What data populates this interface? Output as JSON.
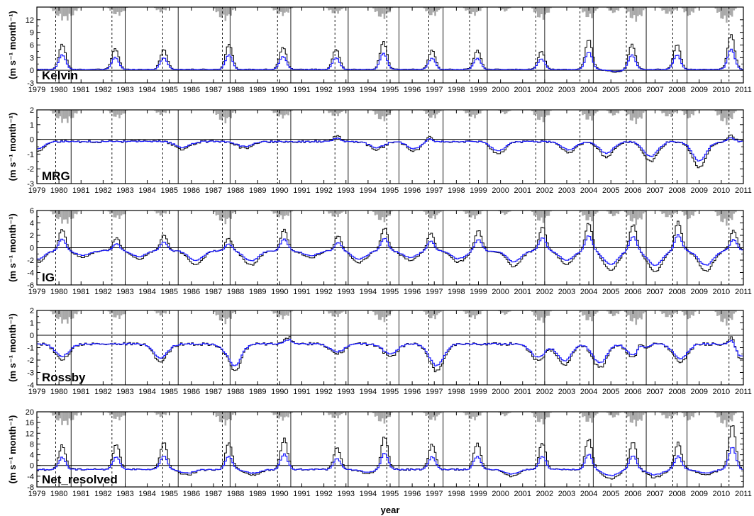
{
  "figure": {
    "xlabel": "year",
    "ylabel_unit": "(m s⁻¹ month⁻¹)"
  },
  "colors": {
    "black_series": "#000000",
    "blue_series": "#1a1aff",
    "gray_bars": "#a9a9a9",
    "axis": "#000000"
  },
  "chart_data": [
    {
      "type": "line",
      "title": "Kelvin",
      "xlabel": "",
      "ylabel": "(m s⁻¹ month⁻¹)",
      "xlim": [
        1979,
        2011
      ],
      "ylim": [
        -3,
        15
      ],
      "yticks": [
        -3,
        0,
        3,
        6,
        9,
        12
      ],
      "xticks": [
        "1979",
        "1980",
        "1981",
        "1982",
        "1983",
        "1984",
        "1985",
        "1986",
        "1987",
        "1988",
        "1989",
        "1990",
        "1991",
        "1992",
        "1993",
        "1994",
        "1995",
        "1996",
        "1997",
        "1998",
        "1999",
        "2000",
        "2001",
        "2002",
        "2003",
        "2004",
        "2005",
        "2006",
        "2007",
        "2008",
        "2009",
        "2010",
        "2011"
      ],
      "grid": false,
      "legend": "none",
      "baseline": 0,
      "base": 0.2,
      "peaks": [
        [
          1980.15,
          6.2
        ],
        [
          1982.55,
          5.2
        ],
        [
          1984.75,
          5.0
        ],
        [
          1987.7,
          6.3
        ],
        [
          1990.15,
          5.6
        ],
        [
          1992.55,
          5.0
        ],
        [
          1994.7,
          6.8
        ],
        [
          1996.9,
          4.8
        ],
        [
          1998.95,
          4.8
        ],
        [
          2001.85,
          4.6
        ],
        [
          2004.0,
          7.3
        ],
        [
          2005.95,
          6.2
        ],
        [
          2008.0,
          6.2
        ],
        [
          2010.45,
          8.6
        ]
      ],
      "blue_ratio": 0.58,
      "dips": [
        [
          2005.2,
          -0.4
        ]
      ],
      "noise": 0.12
    },
    {
      "type": "line",
      "title": "MRG",
      "xlabel": "",
      "ylabel": "(m s⁻¹ month⁻¹)",
      "xlim": [
        1979,
        2011
      ],
      "ylim": [
        -3,
        2
      ],
      "yticks": [
        -3,
        -2,
        -1,
        0,
        1,
        2
      ],
      "xticks": [
        "1979",
        "1980",
        "1981",
        "1982",
        "1983",
        "1984",
        "1985",
        "1986",
        "1987",
        "1988",
        "1989",
        "1990",
        "1991",
        "1992",
        "1993",
        "1994",
        "1995",
        "1996",
        "1997",
        "1998",
        "1999",
        "2000",
        "2001",
        "2002",
        "2003",
        "2004",
        "2005",
        "2006",
        "2007",
        "2008",
        "2009",
        "2010",
        "2011"
      ],
      "grid": false,
      "legend": "none",
      "baseline": 0,
      "base": -0.15,
      "peaks": [
        [
          1992.6,
          0.25
        ],
        [
          1996.75,
          0.25
        ],
        [
          2010.45,
          0.25
        ]
      ],
      "dips": [
        [
          1979.0,
          -0.8
        ],
        [
          1985.6,
          -0.7
        ],
        [
          1988.4,
          -0.6
        ],
        [
          1994.4,
          -0.7
        ],
        [
          1996.1,
          -0.8
        ],
        [
          1999.9,
          -1.0
        ],
        [
          2003.1,
          -0.9
        ],
        [
          2004.8,
          -1.2
        ],
        [
          2006.8,
          -1.5
        ],
        [
          2009.0,
          -1.9
        ]
      ],
      "blue_ratio": 0.6,
      "noise": 0.08
    },
    {
      "type": "line",
      "title": "IG",
      "xlabel": "",
      "ylabel": "(m s⁻¹ month⁻¹)",
      "xlim": [
        1979,
        2011
      ],
      "ylim": [
        -6,
        6
      ],
      "yticks": [
        -6,
        -4,
        -2,
        0,
        2,
        4,
        6
      ],
      "xticks": [
        "1979",
        "1980",
        "1981",
        "1982",
        "1983",
        "1984",
        "1985",
        "1986",
        "1987",
        "1988",
        "1989",
        "1990",
        "1991",
        "1992",
        "1993",
        "1994",
        "1995",
        "1996",
        "1997",
        "1998",
        "1999",
        "2000",
        "2001",
        "2002",
        "2003",
        "2004",
        "2005",
        "2006",
        "2007",
        "2008",
        "2009",
        "2010",
        "2011"
      ],
      "grid": false,
      "legend": "none",
      "baseline": 0,
      "base": -0.5,
      "peaks": [
        [
          1980.15,
          3.0
        ],
        [
          1982.6,
          1.6
        ],
        [
          1984.75,
          2.2
        ],
        [
          1987.7,
          1.6
        ],
        [
          1990.2,
          3.0
        ],
        [
          1992.65,
          2.0
        ],
        [
          1994.75,
          3.2
        ],
        [
          1996.85,
          2.4
        ],
        [
          1999.0,
          2.8
        ],
        [
          2001.9,
          3.4
        ],
        [
          2004.0,
          4.0
        ],
        [
          2006.0,
          3.8
        ],
        [
          2008.05,
          4.2
        ],
        [
          2010.55,
          2.8
        ]
      ],
      "dips": [
        [
          1979.0,
          -2.5
        ],
        [
          1981.1,
          -1.5
        ],
        [
          1983.6,
          -1.8
        ],
        [
          1986.2,
          -2.7
        ],
        [
          1988.7,
          -2.8
        ],
        [
          1991.4,
          -1.6
        ],
        [
          1993.6,
          -2.4
        ],
        [
          1995.9,
          -2.0
        ],
        [
          1998.1,
          -2.3
        ],
        [
          2000.6,
          -3.0
        ],
        [
          2003.0,
          -2.6
        ],
        [
          2005.0,
          -3.6
        ],
        [
          2007.0,
          -3.8
        ],
        [
          2009.3,
          -3.8
        ]
      ],
      "blue_ratio": 0.55,
      "noise": 0.15
    },
    {
      "type": "line",
      "title": "Rossby",
      "xlabel": "",
      "ylabel": "(m s⁻¹ month⁻¹)",
      "xlim": [
        1979,
        2011
      ],
      "ylim": [
        -4,
        2
      ],
      "yticks": [
        -4,
        -3,
        -2,
        -1,
        0,
        1,
        2
      ],
      "xticks": [
        "1979",
        "1980",
        "1981",
        "1982",
        "1983",
        "1984",
        "1985",
        "1986",
        "1987",
        "1988",
        "1989",
        "1990",
        "1991",
        "1992",
        "1993",
        "1994",
        "1995",
        "1996",
        "1997",
        "1998",
        "1999",
        "2000",
        "2001",
        "2002",
        "2003",
        "2004",
        "2005",
        "2006",
        "2007",
        "2008",
        "2009",
        "2010",
        "2011"
      ],
      "grid": false,
      "legend": "none",
      "baseline": 0,
      "base": -0.7,
      "peaks": [
        [
          1987.7,
          -0.1
        ],
        [
          1990.4,
          -0.15
        ],
        [
          2006.3,
          0.2
        ],
        [
          2010.5,
          0.3
        ]
      ],
      "dips": [
        [
          1980.15,
          -1.9
        ],
        [
          1984.6,
          -2.1
        ],
        [
          1987.9,
          -3.1
        ],
        [
          1992.6,
          -1.5
        ],
        [
          1995.0,
          -1.7
        ],
        [
          1997.1,
          -2.9
        ],
        [
          2001.7,
          -2.0
        ],
        [
          2002.9,
          -2.4
        ],
        [
          2004.5,
          -2.6
        ],
        [
          2006.1,
          -2.0
        ],
        [
          2008.15,
          -2.2
        ],
        [
          2010.9,
          -2.0
        ]
      ],
      "blue_ratio": 0.65,
      "noise": 0.12
    },
    {
      "type": "line",
      "title": "Net_resolved",
      "xlabel": "year",
      "ylabel": "(m s⁻¹ month⁻¹)",
      "xlim": [
        1979,
        2011
      ],
      "ylim": [
        -8,
        20
      ],
      "yticks": [
        -8,
        -4,
        0,
        4,
        8,
        12,
        16,
        20
      ],
      "xticks": [
        "1979",
        "1980",
        "1981",
        "1982",
        "1983",
        "1984",
        "1985",
        "1986",
        "1987",
        "1988",
        "1989",
        "1990",
        "1991",
        "1992",
        "1993",
        "1994",
        "1995",
        "1996",
        "1997",
        "1998",
        "1999",
        "2000",
        "2001",
        "2002",
        "2003",
        "2004",
        "2005",
        "2006",
        "2007",
        "2008",
        "2009",
        "2010",
        "2011"
      ],
      "grid": false,
      "legend": "none",
      "baseline": 0,
      "base": -1.5,
      "peaks": [
        [
          1980.15,
          7.5
        ],
        [
          1982.6,
          8.0
        ],
        [
          1984.75,
          8.5
        ],
        [
          1987.7,
          8.5
        ],
        [
          1990.2,
          10.0
        ],
        [
          1992.6,
          7.0
        ],
        [
          1994.75,
          11.0
        ],
        [
          1996.9,
          8.0
        ],
        [
          1998.95,
          8.5
        ],
        [
          2001.9,
          8.5
        ],
        [
          2004.0,
          10.0
        ],
        [
          2006.0,
          9.0
        ],
        [
          2008.05,
          8.5
        ],
        [
          2010.5,
          15.5
        ]
      ],
      "dips": [
        [
          1985.8,
          -3.5
        ],
        [
          1988.8,
          -3.5
        ],
        [
          1994.0,
          -3.0
        ],
        [
          2000.5,
          -4.0
        ],
        [
          2005.0,
          -5.0
        ],
        [
          2007.0,
          -4.5
        ],
        [
          2009.3,
          -3.5
        ]
      ],
      "blue_ratio": 0.5,
      "noise": 0.35
    }
  ],
  "gray_bar_events": [
    [
      [
        1979.6,
        1980.9,
        0.85
      ],
      [
        1982.2,
        1983.1,
        0.55
      ],
      [
        1984.3,
        1985.0,
        0.35
      ],
      [
        1987.0,
        1988.0,
        0.85
      ],
      [
        1989.6,
        1990.6,
        0.55
      ],
      [
        1992.1,
        1992.9,
        0.45
      ],
      [
        1994.2,
        1995.1,
        0.75
      ],
      [
        1996.5,
        1997.3,
        0.6
      ],
      [
        1998.3,
        1999.2,
        0.55
      ],
      [
        1999.9,
        2000.5,
        0.3
      ],
      [
        2001.4,
        2002.3,
        0.8
      ],
      [
        2003.6,
        2004.4,
        0.75
      ],
      [
        2004.8,
        2005.5,
        0.4
      ],
      [
        2005.6,
        2006.6,
        0.9
      ],
      [
        2007.2,
        2008.0,
        0.5
      ],
      [
        2008.2,
        2008.9,
        0.6
      ],
      [
        2009.7,
        2010.7,
        0.95
      ]
    ]
  ]
}
